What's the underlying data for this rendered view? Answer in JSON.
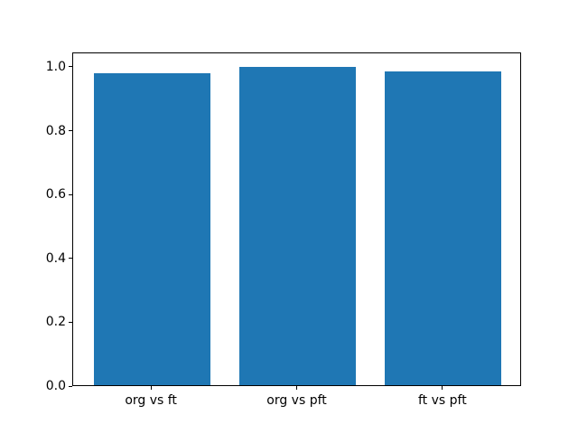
{
  "chart_data": {
    "type": "bar",
    "categories": [
      "org vs ft",
      "org vs pft",
      "ft vs pft"
    ],
    "values": [
      0.976,
      0.996,
      0.982
    ],
    "title": "",
    "xlabel": "",
    "ylabel": "",
    "ylim": [
      0,
      1.045
    ],
    "xlim": [
      -0.54,
      2.54
    ],
    "yticks": [
      0.0,
      0.2,
      0.4,
      0.6,
      0.8,
      1.0
    ],
    "ytick_labels": [
      "0.0",
      "0.2",
      "0.4",
      "0.6",
      "0.8",
      "1.0"
    ],
    "bar_width": 0.8,
    "bar_color": "#1f77b4",
    "grid": false,
    "legend_position": "none",
    "background_color": "#ffffff",
    "spine_color": "#000000"
  }
}
